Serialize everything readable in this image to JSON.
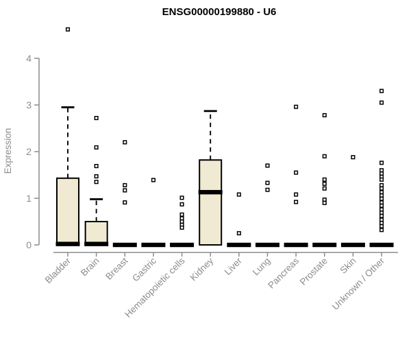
{
  "chart_data": {
    "type": "boxplot",
    "title": "ENSG00000199880 - U6",
    "ylabel": "Expression",
    "xlabel": "",
    "ylim": [
      0,
      4
    ],
    "yticks": [
      0,
      1,
      2,
      3,
      4
    ],
    "grid": false,
    "legend": "none",
    "categories": [
      "Bladder",
      "Brain",
      "Breast",
      "Gastric",
      "Hematopoietic cells",
      "Kidney",
      "Liver",
      "Lung",
      "Pancreas",
      "Prostate",
      "Skin",
      "Unknown / Other"
    ],
    "boxes": [
      {
        "category": "Bladder",
        "q1": 0,
        "median": 0.02,
        "q3": 1.43,
        "whisker_low": 0,
        "whisker_high": 2.95,
        "outliers": [
          4.62
        ]
      },
      {
        "category": "Brain",
        "q1": 0,
        "median": 0.02,
        "q3": 0.5,
        "whisker_low": 0,
        "whisker_high": 0.98,
        "outliers": [
          2.72,
          2.09,
          1.69,
          1.47,
          1.35
        ]
      },
      {
        "category": "Breast",
        "q1": 0,
        "median": 0,
        "q3": 0,
        "whisker_low": 0,
        "whisker_high": 0,
        "outliers": [
          2.2,
          1.28,
          1.17,
          0.91
        ]
      },
      {
        "category": "Gastric",
        "q1": 0,
        "median": 0,
        "q3": 0,
        "whisker_low": 0,
        "whisker_high": 0,
        "outliers": [
          1.39
        ]
      },
      {
        "category": "Hematopoietic cells",
        "q1": 0,
        "median": 0,
        "q3": 0,
        "whisker_low": 0,
        "whisker_high": 0,
        "outliers": [
          1.01,
          0.87,
          0.65,
          0.57,
          0.5,
          0.43,
          0.37
        ]
      },
      {
        "category": "Kidney",
        "q1": 0,
        "median": 1.13,
        "q3": 1.82,
        "whisker_low": 0,
        "whisker_high": 2.87,
        "outliers": []
      },
      {
        "category": "Liver",
        "q1": 0,
        "median": 0,
        "q3": 0,
        "whisker_low": 0,
        "whisker_high": 0,
        "outliers": [
          1.08,
          0.25
        ]
      },
      {
        "category": "Lung",
        "q1": 0,
        "median": 0,
        "q3": 0,
        "whisker_low": 0,
        "whisker_high": 0,
        "outliers": [
          1.7,
          1.33,
          1.18
        ]
      },
      {
        "category": "Pancreas",
        "q1": 0,
        "median": 0,
        "q3": 0,
        "whisker_low": 0,
        "whisker_high": 0,
        "outliers": [
          2.96,
          1.55,
          1.08,
          0.92
        ]
      },
      {
        "category": "Prostate",
        "q1": 0,
        "median": 0,
        "q3": 0,
        "whisker_low": 0,
        "whisker_high": 0,
        "outliers": [
          2.78,
          1.9,
          1.4,
          1.31,
          1.21,
          0.97,
          0.9
        ]
      },
      {
        "category": "Skin",
        "q1": 0,
        "median": 0,
        "q3": 0,
        "whisker_low": 0,
        "whisker_high": 0,
        "outliers": [
          1.88
        ]
      },
      {
        "category": "Unknown / Other",
        "q1": 0,
        "median": 0,
        "q3": 0,
        "whisker_low": 0,
        "whisker_high": 0,
        "outliers": [
          3.3,
          3.05,
          1.76,
          1.6,
          1.53,
          1.46,
          1.4,
          1.28,
          1.21,
          1.13,
          1.06,
          0.99,
          0.91,
          0.84,
          0.76,
          0.69,
          0.62,
          0.54,
          0.47,
          0.4,
          0.32
        ]
      }
    ],
    "colors": {
      "box_fill": "#f0ead2",
      "box_border": "#000000",
      "median": "#000000",
      "whisker": "#000000",
      "outlier_stroke": "#000000",
      "outlier_fill": "#ffffff",
      "axis": "#8c8c8c",
      "tick_text": "#8c8c8c",
      "title_text": "#000000",
      "background": "#ffffff"
    }
  }
}
